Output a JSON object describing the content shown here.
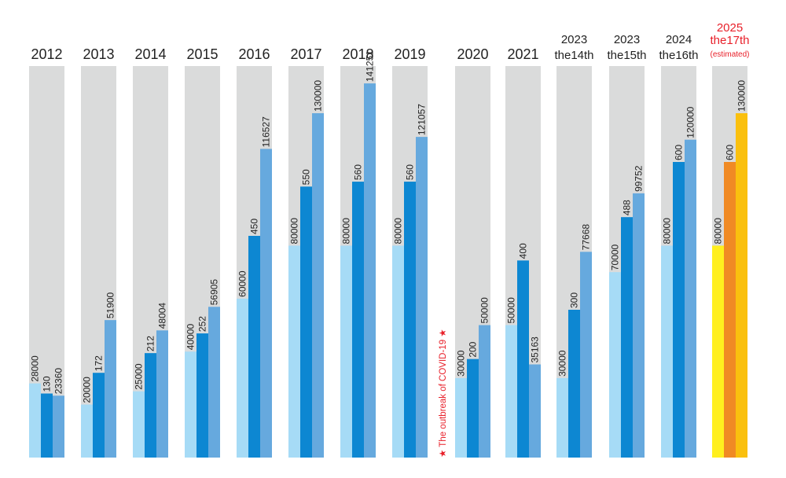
{
  "chart_data": {
    "type": "bar",
    "ylim": [
      0,
      150000
    ],
    "groups": [
      {
        "label": [
          "2012"
        ],
        "values": [
          28000,
          130,
          23360
        ]
      },
      {
        "label": [
          "2013"
        ],
        "values": [
          20000,
          172,
          51900
        ]
      },
      {
        "label": [
          "2014"
        ],
        "values": [
          25000,
          212,
          48004
        ]
      },
      {
        "label": [
          "2015"
        ],
        "values": [
          40000,
          252,
          56905
        ]
      },
      {
        "label": [
          "2016"
        ],
        "values": [
          60000,
          450,
          116527
        ]
      },
      {
        "label": [
          "2017"
        ],
        "values": [
          80000,
          550,
          130000
        ]
      },
      {
        "label": [
          "2018"
        ],
        "values": [
          80000,
          560,
          141251
        ]
      },
      {
        "label": [
          "2019"
        ],
        "values": [
          80000,
          560,
          121057
        ]
      },
      {
        "label": [
          "2020"
        ],
        "values": [
          30000,
          200,
          50000
        ]
      },
      {
        "label": [
          "2021"
        ],
        "values": [
          50000,
          400,
          35163
        ]
      },
      {
        "label": [
          "2023",
          "the14th"
        ],
        "values": [
          30000,
          300,
          77668
        ]
      },
      {
        "label": [
          "2023",
          "the15th"
        ],
        "values": [
          70000,
          488,
          99752
        ]
      },
      {
        "label": [
          "2024",
          "the16th"
        ],
        "values": [
          80000,
          600,
          120000
        ]
      },
      {
        "label": [
          "2025",
          "the17th",
          "(estimated)"
        ],
        "values": [
          80000,
          600,
          130000
        ],
        "estimated": true
      }
    ],
    "annotation": {
      "text": "★ The outbreak of COVID-19 ★",
      "group": "2020"
    },
    "grid": false
  },
  "colors": {
    "background_column": "#dadbdb",
    "bar_1": "#a6dbf6",
    "bar_2": "#0d87d2",
    "bar_3": "#66a9de",
    "estimated_bar_1": "#ffef1e",
    "estimated_bar_2": "#f08a24",
    "estimated_bar_3": "#fac00e",
    "annotation": "#e8202a"
  }
}
